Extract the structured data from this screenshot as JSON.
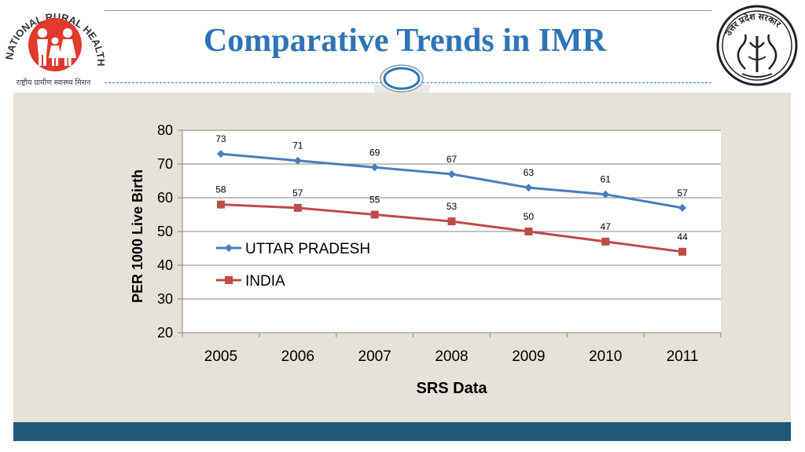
{
  "header": {
    "title": "Comparative Trends in IMR",
    "logo_left_text": "NATIONAL RURAL HEALTH MISSION",
    "logo_left_subtext": "राष्ट्रीय ग्रामीण स्वास्थ्य मिशन",
    "logo_right_text": "उत्तर प्रदेश सरकार"
  },
  "colors": {
    "title": "#2e75b6",
    "panel": "#e6e2d8",
    "footer": "#1f5878",
    "series_up": "#4a7ebb",
    "series_india": "#be4b48"
  },
  "chart_data": {
    "type": "line",
    "title": "",
    "xlabel": "SRS Data",
    "ylabel": "PER 1000 Live Birth",
    "categories": [
      "2005",
      "2006",
      "2007",
      "2008",
      "2009",
      "2010",
      "2011"
    ],
    "yticks": [
      20,
      30,
      40,
      50,
      60,
      70,
      80
    ],
    "ylim": [
      20,
      80
    ],
    "grid": true,
    "legend_position": "middle-left",
    "series": [
      {
        "name": "UTTAR PRADESH",
        "marker": "diamond",
        "values": [
          73,
          71,
          69,
          67,
          63,
          61,
          57
        ]
      },
      {
        "name": "INDIA",
        "marker": "square",
        "values": [
          58,
          57,
          55,
          53,
          50,
          47,
          44
        ]
      }
    ]
  }
}
